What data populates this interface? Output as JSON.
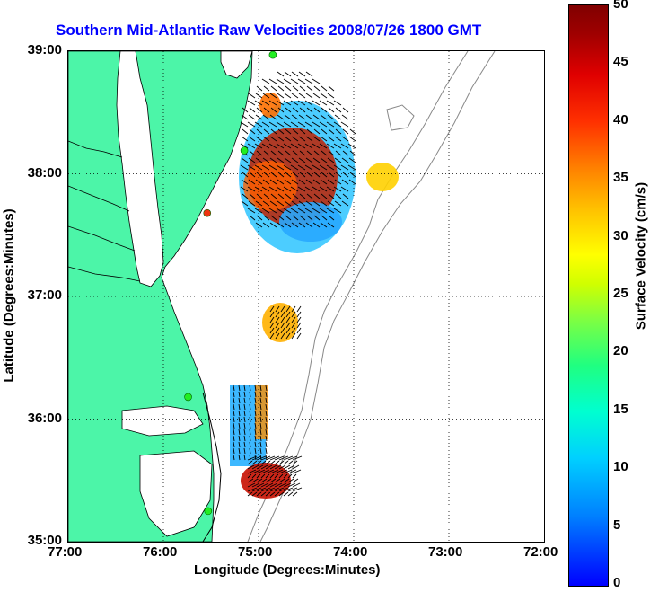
{
  "title": "Southern Mid-Atlantic Raw Velocities 2008/07/26 1800 GMT",
  "x_axis": {
    "label": "Longitude (Degrees:Minutes)",
    "ticks": [
      "77:00",
      "76:00",
      "75:00",
      "74:00",
      "73:00",
      "72:00"
    ]
  },
  "y_axis": {
    "label": "Latitude (Degrees:Minutes)",
    "ticks": [
      "39:00",
      "38:00",
      "37:00",
      "36:00",
      "35:00"
    ]
  },
  "colorbar": {
    "label": "Surface Velocity (cm/s)",
    "ticks": [
      "50",
      "45",
      "40",
      "35",
      "30",
      "25",
      "20",
      "15",
      "10",
      "5",
      "0"
    ],
    "range": [
      0,
      50
    ]
  },
  "colors": {
    "land": "#4cf5a8",
    "title": "#0000ff",
    "station_active": "#22ee22",
    "station_inactive": "#ee3311",
    "isobath": "#888888"
  },
  "map": {
    "lon_range": [
      -77,
      -72
    ],
    "lat_range": [
      35,
      39
    ],
    "grid": "dotted",
    "stations": [
      {
        "lon": -74.85,
        "lat": 38.97,
        "status": "active"
      },
      {
        "lon": -75.15,
        "lat": 38.19,
        "status": "active"
      },
      {
        "lon": -75.54,
        "lat": 37.68,
        "status": "inactive"
      },
      {
        "lon": -75.74,
        "lat": 36.18,
        "status": "active"
      },
      {
        "lon": -75.53,
        "lat": 35.25,
        "status": "active"
      }
    ]
  }
}
